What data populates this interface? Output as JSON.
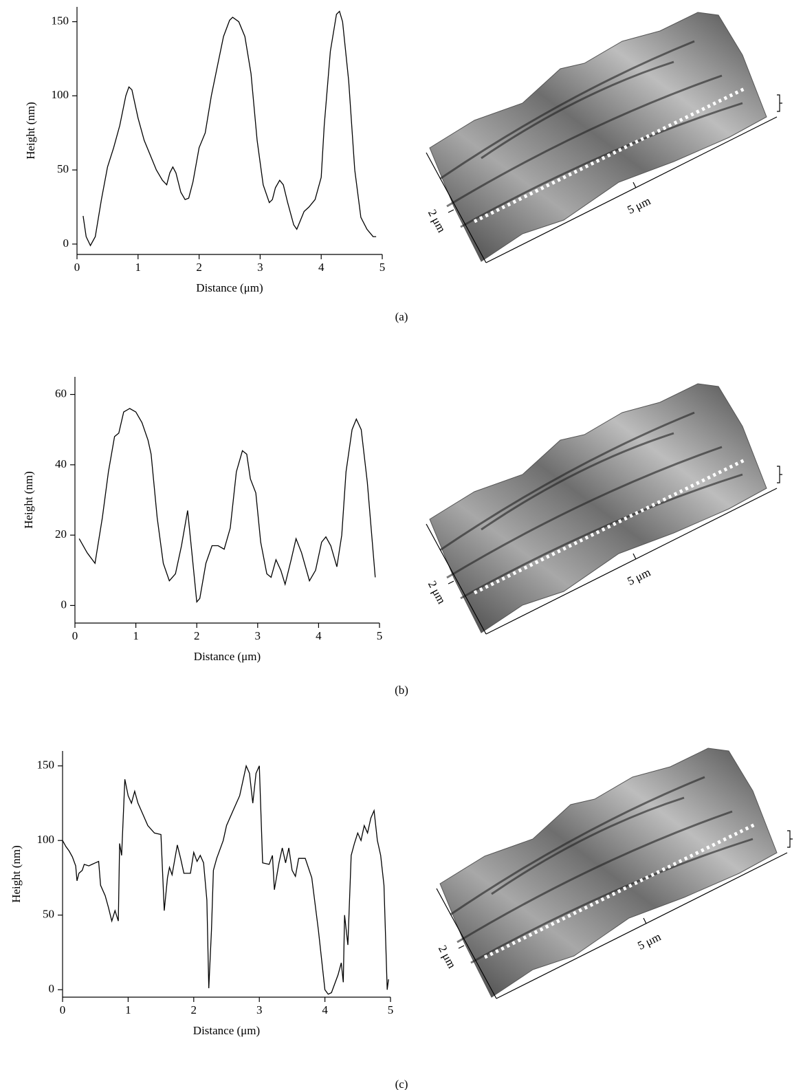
{
  "chart_data": [
    {
      "type": "line",
      "panel_label": "(a)",
      "image_labels": [
        "2 μm",
        "5 μm"
      ],
      "x_label": "Distance (μm)",
      "y_label": "Height (nm)",
      "color": "#000000",
      "xlim": [
        0,
        5
      ],
      "ylim": [
        -7,
        160
      ],
      "xticks": [
        0,
        1,
        2,
        3,
        4,
        5
      ],
      "yticks": [
        0,
        50,
        100,
        150
      ],
      "x": [
        0.1,
        0.15,
        0.22,
        0.3,
        0.4,
        0.5,
        0.6,
        0.7,
        0.8,
        0.85,
        0.9,
        1.0,
        1.1,
        1.2,
        1.3,
        1.4,
        1.47,
        1.52,
        1.57,
        1.62,
        1.7,
        1.77,
        1.83,
        1.9,
        2.0,
        2.1,
        2.2,
        2.3,
        2.4,
        2.5,
        2.55,
        2.65,
        2.75,
        2.85,
        2.95,
        3.05,
        3.15,
        3.2,
        3.25,
        3.32,
        3.38,
        3.45,
        3.55,
        3.6,
        3.65,
        3.72,
        3.8,
        3.9,
        4.0,
        4.05,
        4.15,
        4.25,
        4.3,
        4.35,
        4.45,
        4.55,
        4.65,
        4.75,
        4.85,
        4.9
      ],
      "values": [
        19,
        5,
        -1,
        5,
        30,
        52,
        65,
        80,
        100,
        106,
        104,
        85,
        70,
        60,
        50,
        43,
        40,
        48,
        52,
        48,
        35,
        30,
        31,
        42,
        65,
        75,
        100,
        120,
        140,
        151,
        153,
        150,
        140,
        115,
        70,
        40,
        28,
        30,
        38,
        43,
        40,
        28,
        13,
        10,
        15,
        22,
        25,
        30,
        45,
        80,
        130,
        155,
        157,
        150,
        110,
        50,
        18,
        10,
        5,
        5
      ]
    },
    {
      "type": "line",
      "panel_label": "(b)",
      "image_labels": [
        "2 μm",
        "5 μm"
      ],
      "x_label": "Distance (μm)",
      "y_label": "Height (nm)",
      "color": "#000000",
      "xlim": [
        0,
        5
      ],
      "ylim": [
        -5,
        65
      ],
      "xticks": [
        0,
        1,
        2,
        3,
        4,
        5
      ],
      "yticks": [
        0,
        20,
        40,
        60
      ],
      "x": [
        0.07,
        0.2,
        0.33,
        0.45,
        0.55,
        0.65,
        0.72,
        0.8,
        0.9,
        1.0,
        1.1,
        1.2,
        1.25,
        1.35,
        1.45,
        1.55,
        1.65,
        1.75,
        1.85,
        1.92,
        2.0,
        2.05,
        2.15,
        2.25,
        2.35,
        2.45,
        2.55,
        2.65,
        2.75,
        2.82,
        2.88,
        2.97,
        3.05,
        3.15,
        3.22,
        3.3,
        3.38,
        3.45,
        3.55,
        3.63,
        3.72,
        3.85,
        3.95,
        4.05,
        4.12,
        4.2,
        4.3,
        4.38,
        4.45,
        4.55,
        4.62,
        4.7,
        4.8,
        4.93
      ],
      "values": [
        19,
        15,
        12,
        25,
        38,
        48,
        49,
        55,
        56,
        55,
        52,
        47,
        43,
        25,
        12,
        7,
        9,
        17,
        27,
        15,
        1,
        2,
        12,
        17,
        17,
        16,
        22,
        38,
        44,
        43,
        36,
        32,
        18,
        9,
        8,
        13,
        10,
        6,
        13,
        19,
        15,
        7,
        10,
        18,
        19.5,
        17,
        11,
        20,
        38,
        50,
        53,
        50,
        35,
        8
      ]
    },
    {
      "type": "line",
      "panel_label": "(c)",
      "image_labels": [
        "2 μm",
        "5 μm"
      ],
      "x_label": "Distance (μm)",
      "y_label": "Height (nm)",
      "color": "#000000",
      "xlim": [
        0,
        5
      ],
      "ylim": [
        -5,
        160
      ],
      "xticks": [
        0,
        1,
        2,
        3,
        4,
        5
      ],
      "yticks": [
        0,
        50,
        100,
        150
      ],
      "x": [
        0,
        0.05,
        0.1,
        0.15,
        0.2,
        0.22,
        0.25,
        0.3,
        0.33,
        0.4,
        0.45,
        0.5,
        0.55,
        0.58,
        0.65,
        0.7,
        0.75,
        0.8,
        0.85,
        0.87,
        0.9,
        0.95,
        1.0,
        1.05,
        1.1,
        1.15,
        1.2,
        1.3,
        1.4,
        1.5,
        1.55,
        1.6,
        1.63,
        1.67,
        1.75,
        1.8,
        1.85,
        1.95,
        2.0,
        2.05,
        2.1,
        2.15,
        2.2,
        2.23,
        2.27,
        2.3,
        2.35,
        2.45,
        2.5,
        2.6,
        2.7,
        2.8,
        2.85,
        2.9,
        2.95,
        3.0,
        3.05,
        3.15,
        3.2,
        3.23,
        3.3,
        3.35,
        3.4,
        3.45,
        3.5,
        3.55,
        3.6,
        3.7,
        3.8,
        3.9,
        4.0,
        4.05,
        4.1,
        4.2,
        4.25,
        4.28,
        4.3,
        4.35,
        4.4,
        4.45,
        4.5,
        4.55,
        4.6,
        4.65,
        4.7,
        4.75,
        4.8,
        4.85,
        4.9,
        4.95,
        4.97
      ],
      "values": [
        100,
        96,
        93,
        89,
        83,
        73,
        78,
        80,
        84,
        83,
        84,
        85,
        86,
        70,
        63,
        55,
        46,
        53,
        46,
        98,
        90,
        141,
        130,
        125,
        133,
        125,
        120,
        110,
        105,
        104,
        53,
        75,
        82,
        77,
        97,
        88,
        78,
        78,
        92,
        86,
        90,
        85,
        60,
        1,
        40,
        80,
        88,
        100,
        110,
        120,
        130,
        150,
        145,
        125,
        145,
        150,
        85,
        84,
        90,
        67,
        85,
        95,
        85,
        95,
        80,
        76,
        88,
        88,
        75,
        40,
        0,
        -3,
        -2,
        10,
        18,
        5,
        50,
        30,
        90,
        98,
        105,
        100,
        110,
        105,
        115,
        120,
        100,
        90,
        70,
        0,
        7
      ]
    }
  ]
}
